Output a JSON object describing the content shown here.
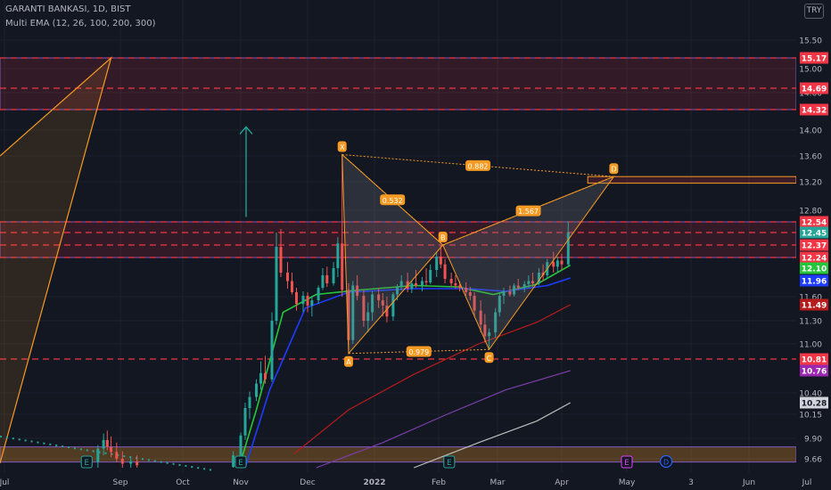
{
  "header": {
    "symbol": "GARANTI BANKASI, 1D, BIST",
    "indicator": "Multi EMA (12, 26, 100, 200, 300)",
    "currency": "TRY"
  },
  "colors": {
    "background": "#131722",
    "up": "#26a69a",
    "down": "#ef5350",
    "ema12": "#26c63b",
    "ema26": "#1e3cff",
    "ema100": "#b71c1c",
    "ema200": "#7b3fa8",
    "ema300": "#bdbdbd",
    "pattern": "#f59a23",
    "zone_red": "#f23645"
  },
  "chart_data": {
    "type": "candlestick",
    "title": "GARANTI BANKASI, 1D, BIST",
    "y_axis": {
      "ticks": [
        "15.50",
        "15.00",
        "14.60",
        "14.00",
        "13.60",
        "13.20",
        "12.80",
        "11.60",
        "11.30",
        "11.00",
        "10.40",
        "10.15",
        "9.90",
        "9.66"
      ],
      "ylim": [
        9.55,
        15.75
      ],
      "price_labels": [
        {
          "value": "15.17",
          "color": "#f23645"
        },
        {
          "value": "14.69",
          "color": "#f23645"
        },
        {
          "value": "14.32",
          "color": "#f23645"
        },
        {
          "value": "12.54",
          "color": "#f23645"
        },
        {
          "value": "12.45",
          "color": "#26a69a"
        },
        {
          "value": "12.37",
          "color": "#f23645"
        },
        {
          "value": "12.24",
          "color": "#f23645"
        },
        {
          "value": "12.10",
          "color": "#26c63b"
        },
        {
          "value": "11.96",
          "color": "#1e3cff"
        },
        {
          "value": "11.49",
          "color": "#b71c1c"
        },
        {
          "value": "10.81",
          "color": "#f23645"
        },
        {
          "value": "10.76",
          "color": "#9c27b0"
        },
        {
          "value": "10.28",
          "color": "#d1d4dc"
        }
      ]
    },
    "x_axis": {
      "ticks": [
        "Jul",
        "Sep",
        "Oct",
        "Nov",
        "Dec",
        "2022",
        "Feb",
        "Mar",
        "Apr",
        "May",
        "3",
        "Jun",
        "Jul"
      ],
      "range": [
        "2021-07-01",
        "2022-07-31"
      ]
    },
    "zones": [
      {
        "from": 14.32,
        "to": 15.17,
        "kind": "resistance"
      },
      {
        "from": 12.24,
        "to": 12.54,
        "kind": "resistance"
      },
      {
        "from": 13.18,
        "to": 13.28,
        "kind": "target"
      },
      {
        "from": 9.62,
        "to": 9.8,
        "kind": "support"
      }
    ],
    "dashed_levels": [
      15.17,
      14.69,
      14.32,
      12.54,
      12.45,
      12.37,
      12.24,
      10.81
    ],
    "harmonic_pattern": {
      "points": [
        {
          "label": "X",
          "date": "2021-12-17",
          "price": 13.62
        },
        {
          "label": "A",
          "date": "2021-12-20",
          "price": 10.88
        },
        {
          "label": "B",
          "date": "2022-02-03",
          "price": 12.37
        },
        {
          "label": "C",
          "date": "2022-02-25",
          "price": 10.93
        },
        {
          "label": "D",
          "date": "2022-04-25",
          "price": 13.28
        }
      ],
      "ratios": [
        {
          "value": "0.532",
          "between": "X-B"
        },
        {
          "value": "0.979",
          "between": "A-C"
        },
        {
          "value": "1.567",
          "between": "B-D"
        },
        {
          "value": "0.882",
          "between": "X-D"
        }
      ]
    },
    "big_pattern_peak": {
      "date": "2021-08-27",
      "price": 15.17
    },
    "arrow_up": {
      "date": "2021-11-01",
      "from": 12.65,
      "to": 14.05
    },
    "earnings": [
      "2021-08-14",
      "2021-11-01",
      "2022-02-06",
      "2022-05-01"
    ],
    "dividend": [
      "2022-05-20"
    ],
    "ema_series": [
      {
        "name": "EMA 12",
        "points": [
          [
            "2021-10-31",
            9.55
          ],
          [
            "2021-11-08",
            10.2
          ],
          [
            "2021-11-20",
            11.4
          ],
          [
            "2021-12-05",
            11.65
          ],
          [
            "2021-12-25",
            11.75
          ],
          [
            "2022-01-20",
            11.85
          ],
          [
            "2022-02-10",
            11.82
          ],
          [
            "2022-02-27",
            11.65
          ],
          [
            "2022-03-20",
            11.88
          ],
          [
            "2022-04-05",
            12.14
          ]
        ]
      },
      {
        "name": "EMA 26",
        "points": [
          [
            "2021-11-03",
            9.55
          ],
          [
            "2021-11-14",
            10.45
          ],
          [
            "2021-11-30",
            11.45
          ],
          [
            "2021-12-20",
            11.7
          ],
          [
            "2022-01-20",
            11.78
          ],
          [
            "2022-02-15",
            11.78
          ],
          [
            "2022-03-05",
            11.72
          ],
          [
            "2022-03-25",
            11.85
          ],
          [
            "2022-04-05",
            11.99
          ]
        ]
      },
      {
        "name": "EMA 100",
        "points": [
          [
            "2021-11-25",
            9.72
          ],
          [
            "2021-12-20",
            10.2
          ],
          [
            "2022-01-20",
            10.7
          ],
          [
            "2022-02-20",
            11.0
          ],
          [
            "2022-03-20",
            11.28
          ],
          [
            "2022-04-05",
            11.49
          ]
        ]
      },
      {
        "name": "EMA 200",
        "points": [
          [
            "2021-12-05",
            9.55
          ],
          [
            "2022-01-05",
            9.85
          ],
          [
            "2022-02-05",
            10.15
          ],
          [
            "2022-03-05",
            10.45
          ],
          [
            "2022-04-05",
            10.76
          ]
        ]
      },
      {
        "name": "EMA 300",
        "points": [
          [
            "2022-01-20",
            9.55
          ],
          [
            "2022-02-20",
            9.85
          ],
          [
            "2022-03-20",
            10.08
          ],
          [
            "2022-04-05",
            10.28
          ]
        ]
      }
    ],
    "candles": [
      [
        "2021-08-20",
        9.62,
        9.82,
        9.55,
        9.78
      ],
      [
        "2021-08-23",
        9.78,
        9.95,
        9.7,
        9.88
      ],
      [
        "2021-08-25",
        9.88,
        9.98,
        9.76,
        9.8
      ],
      [
        "2021-08-27",
        9.8,
        9.92,
        9.68,
        9.74
      ],
      [
        "2021-08-30",
        9.74,
        9.85,
        9.62,
        9.66
      ],
      [
        "2021-09-02",
        9.66,
        9.75,
        9.55,
        9.6
      ],
      [
        "2021-09-06",
        9.6,
        9.68,
        9.55,
        9.63
      ],
      [
        "2021-09-09",
        9.63,
        9.7,
        9.55,
        9.58
      ],
      [
        "2021-10-28",
        9.56,
        9.75,
        9.55,
        9.7
      ],
      [
        "2021-11-01",
        9.7,
        9.96,
        9.66,
        9.93
      ],
      [
        "2021-11-03",
        9.93,
        10.28,
        9.88,
        10.22
      ],
      [
        "2021-11-05",
        10.22,
        10.42,
        10.1,
        10.35
      ],
      [
        "2021-11-08",
        10.35,
        10.62,
        10.3,
        10.55
      ],
      [
        "2021-11-10",
        10.55,
        10.8,
        10.45,
        10.72
      ],
      [
        "2021-11-12",
        10.72,
        10.85,
        10.55,
        10.62
      ],
      [
        "2021-11-15",
        10.62,
        11.4,
        10.58,
        11.3
      ],
      [
        "2021-11-17",
        11.3,
        12.45,
        11.25,
        12.35
      ],
      [
        "2021-11-19",
        12.35,
        12.48,
        12.0,
        12.05
      ],
      [
        "2021-11-22",
        12.05,
        12.18,
        11.78,
        11.95
      ],
      [
        "2021-11-24",
        11.95,
        12.05,
        11.65,
        11.7
      ],
      [
        "2021-11-26",
        11.7,
        11.8,
        11.42,
        11.5
      ],
      [
        "2021-11-29",
        11.5,
        11.72,
        11.4,
        11.62
      ],
      [
        "2021-12-01",
        11.62,
        11.7,
        11.4,
        11.48
      ],
      [
        "2021-12-03",
        11.48,
        11.62,
        11.35,
        11.55
      ],
      [
        "2021-12-06",
        11.55,
        11.85,
        11.5,
        11.8
      ],
      [
        "2021-12-08",
        11.8,
        12.1,
        11.75,
        12.02
      ],
      [
        "2021-12-10",
        12.02,
        12.12,
        11.82,
        11.9
      ],
      [
        "2021-12-13",
        11.9,
        12.18,
        11.85,
        12.1
      ],
      [
        "2021-12-15",
        12.1,
        12.42,
        12.0,
        12.38
      ],
      [
        "2021-12-17",
        12.38,
        13.62,
        11.6,
        11.75
      ],
      [
        "2021-12-20",
        11.75,
        11.9,
        10.88,
        11.05
      ],
      [
        "2021-12-22",
        11.05,
        11.95,
        11.0,
        11.85
      ],
      [
        "2021-12-24",
        11.85,
        12.02,
        11.55,
        11.62
      ],
      [
        "2021-12-27",
        11.62,
        11.75,
        11.22,
        11.3
      ],
      [
        "2021-12-29",
        11.3,
        11.52,
        11.15,
        11.4
      ],
      [
        "2021-12-31",
        11.4,
        11.72,
        11.3,
        11.65
      ],
      [
        "2022-01-03",
        11.65,
        11.8,
        11.45,
        11.55
      ],
      [
        "2022-01-05",
        11.55,
        11.68,
        11.35,
        11.48
      ],
      [
        "2022-01-07",
        11.48,
        11.6,
        11.28,
        11.35
      ],
      [
        "2022-01-10",
        11.35,
        11.7,
        11.3,
        11.65
      ],
      [
        "2022-01-12",
        11.65,
        11.88,
        11.55,
        11.82
      ],
      [
        "2022-01-14",
        11.82,
        12.02,
        11.75,
        11.95
      ],
      [
        "2022-01-17",
        11.95,
        12.05,
        11.7,
        11.78
      ],
      [
        "2022-01-19",
        11.78,
        11.95,
        11.68,
        11.9
      ],
      [
        "2022-01-21",
        11.9,
        12.08,
        11.8,
        11.85
      ],
      [
        "2022-01-24",
        11.85,
        12.0,
        11.72,
        11.95
      ],
      [
        "2022-01-26",
        11.95,
        12.1,
        11.85,
        11.92
      ],
      [
        "2022-01-28",
        11.92,
        12.15,
        11.88,
        12.08
      ],
      [
        "2022-01-31",
        12.08,
        12.3,
        12.0,
        12.25
      ],
      [
        "2022-02-02",
        12.25,
        12.37,
        12.1,
        12.15
      ],
      [
        "2022-02-04",
        12.15,
        12.22,
        11.9,
        11.98
      ],
      [
        "2022-02-07",
        11.98,
        12.05,
        11.82,
        11.9
      ],
      [
        "2022-02-09",
        11.9,
        12.02,
        11.78,
        11.85
      ],
      [
        "2022-02-11",
        11.85,
        11.95,
        11.72,
        11.8
      ],
      [
        "2022-02-14",
        11.8,
        11.92,
        11.62,
        11.7
      ],
      [
        "2022-02-16",
        11.7,
        11.82,
        11.55,
        11.62
      ],
      [
        "2022-02-18",
        11.62,
        11.7,
        11.35,
        11.42
      ],
      [
        "2022-02-21",
        11.42,
        11.55,
        11.15,
        11.25
      ],
      [
        "2022-02-23",
        11.25,
        11.38,
        11.02,
        11.1
      ],
      [
        "2022-02-25",
        11.1,
        11.2,
        10.93,
        11.15
      ],
      [
        "2022-02-28",
        11.15,
        11.45,
        11.08,
        11.4
      ],
      [
        "2022-03-02",
        11.4,
        11.68,
        11.35,
        11.62
      ],
      [
        "2022-03-04",
        11.62,
        11.8,
        11.5,
        11.72
      ],
      [
        "2022-03-07",
        11.72,
        11.85,
        11.6,
        11.65
      ],
      [
        "2022-03-09",
        11.65,
        11.9,
        11.6,
        11.85
      ],
      [
        "2022-03-11",
        11.85,
        11.98,
        11.75,
        11.8
      ],
      [
        "2022-03-14",
        11.8,
        11.95,
        11.7,
        11.88
      ],
      [
        "2022-03-16",
        11.88,
        12.02,
        11.8,
        11.95
      ],
      [
        "2022-03-18",
        11.95,
        12.05,
        11.82,
        11.9
      ],
      [
        "2022-03-21",
        11.9,
        12.1,
        11.85,
        12.05
      ],
      [
        "2022-03-23",
        12.05,
        12.15,
        11.95,
        12.02
      ],
      [
        "2022-03-25",
        12.02,
        12.22,
        11.98,
        12.18
      ],
      [
        "2022-03-28",
        12.18,
        12.3,
        12.05,
        12.12
      ],
      [
        "2022-03-30",
        12.12,
        12.25,
        12.05,
        12.2
      ],
      [
        "2022-04-01",
        12.2,
        12.28,
        12.08,
        12.15
      ],
      [
        "2022-04-04",
        12.15,
        12.55,
        12.12,
        12.45
      ]
    ]
  }
}
